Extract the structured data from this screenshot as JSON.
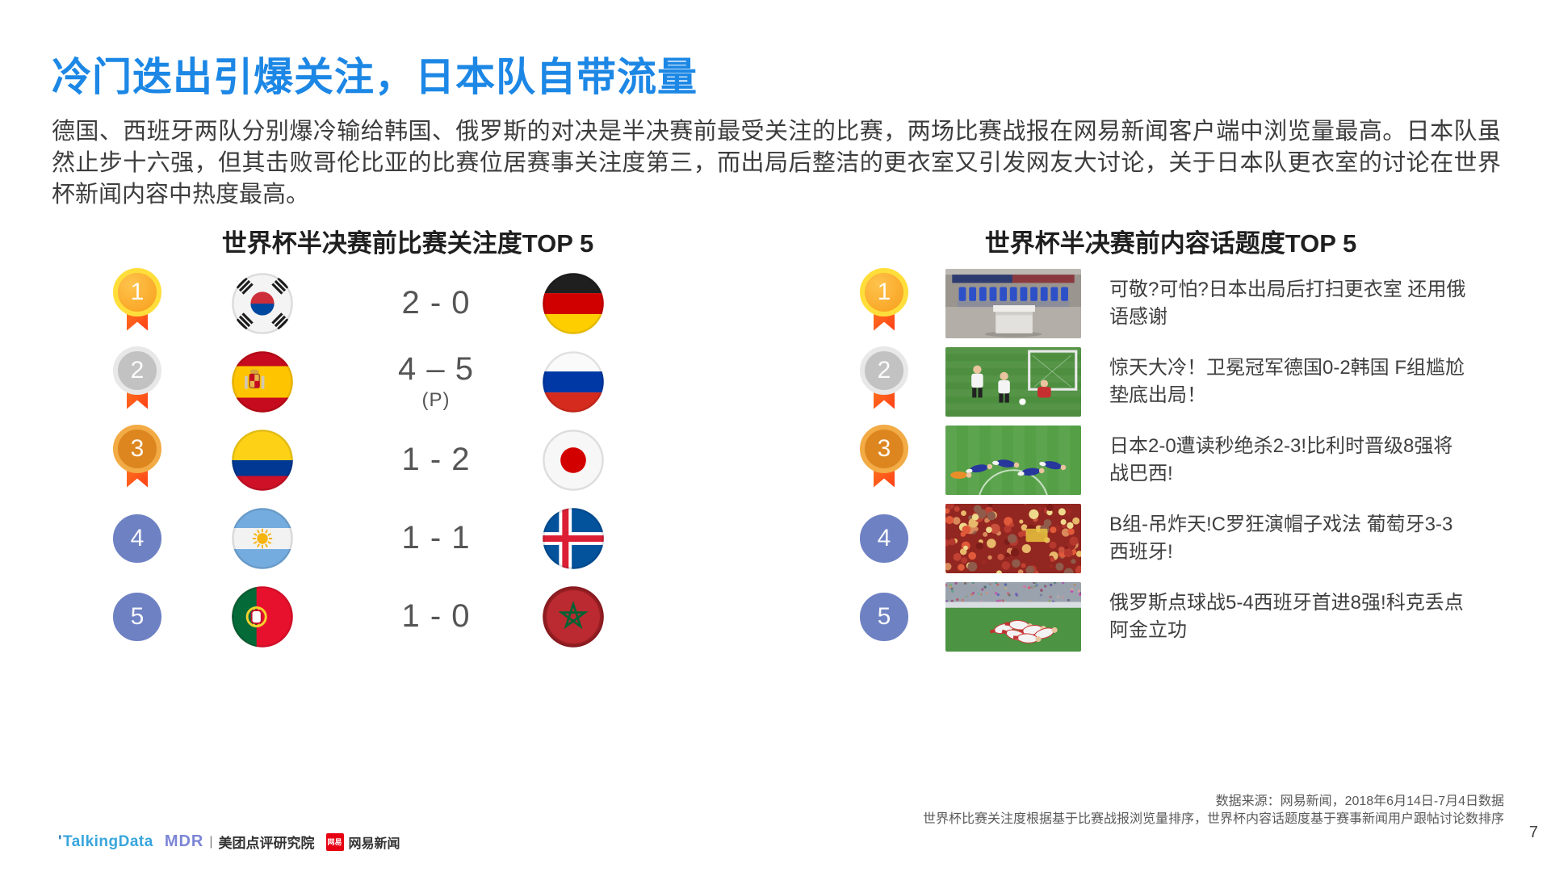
{
  "page": {
    "title": "冷门迭出引爆关注，日本队自带流量",
    "paragraph": "德国、西班牙两队分别爆冷输给韩国、俄罗斯的对决是半决赛前最受关注的比赛，两场比赛战报在网易新闻客户端中浏览量最高。日本队虽然止步十六强，但其击败哥伦比亚的比赛位居赛事关注度第三，而出局后整洁的更衣室又引发网友大讨论，关于日本队更衣室的讨论在世界杯新闻内容中热度最高。",
    "page_number": "7"
  },
  "left_panel": {
    "title": "世界杯半决赛前比赛关注度TOP 5",
    "rows": [
      {
        "rank": "1",
        "team_left": "south-korea",
        "score": "2 - 0",
        "score_note": "",
        "team_right": "germany"
      },
      {
        "rank": "2",
        "team_left": "spain",
        "score": "4 – 5",
        "score_note": "(P)",
        "team_right": "russia"
      },
      {
        "rank": "3",
        "team_left": "colombia",
        "score": "1 - 2",
        "score_note": "",
        "team_right": "japan"
      },
      {
        "rank": "4",
        "team_left": "argentina",
        "score": "1 - 1",
        "score_note": "",
        "team_right": "iceland"
      },
      {
        "rank": "5",
        "team_left": "portugal",
        "score": "1 - 0",
        "score_note": "",
        "team_right": "morocco"
      }
    ]
  },
  "right_panel": {
    "title": "世界杯半决赛前内容话题度TOP 5",
    "rows": [
      {
        "rank": "1",
        "image": "japan-locker-room",
        "headline": "可敬?可怕?日本出局后打扫更衣室 还用俄语感谢"
      },
      {
        "rank": "2",
        "image": "germany-korea-match",
        "headline": "惊天大冷！卫冕冠军德国0-2韩国 F组尴尬垫底出局！"
      },
      {
        "rank": "3",
        "image": "japan-players-pitch",
        "headline": "日本2-0遭读秒绝杀2-3!比利时晋级8强将战巴西!"
      },
      {
        "rank": "4",
        "image": "fans-crowd",
        "headline": "B组-吊炸天!C罗狂演帽子戏法 葡萄牙3-3西班牙!"
      },
      {
        "rank": "5",
        "image": "russia-celebration",
        "headline": "俄罗斯点球战5-4西班牙首进8强!科克丢点阿金立功"
      }
    ]
  },
  "footer": {
    "source_line1": "数据来源：网易新闻，2018年6月14日-7月4日数据",
    "source_line2": "世界杯比赛关注度根据基于比赛战报浏览量排序，世界杯内容话题度基于赛事新闻用户跟帖讨论数排序",
    "logos": {
      "talkingdata": "TalkingData",
      "mdr": "MDR",
      "meituan": "美团点评研究院",
      "netease_badge": "网易",
      "netease": "网易新闻"
    }
  },
  "colors": {
    "title_blue": "#1C87E5",
    "body_text": "#3d3d3d",
    "score_text": "#555555",
    "rank_blue": "#6e81c3",
    "ribbon_orange": "#ff7a1f",
    "gold": "#f79e1b",
    "gold_ring": "#ffde3b",
    "silver": "#c2c2c2",
    "silver_ring": "#e8e8e8",
    "bronze": "#dd861f",
    "bronze_ring": "#f2ab45",
    "netease_red": "#e60012"
  }
}
